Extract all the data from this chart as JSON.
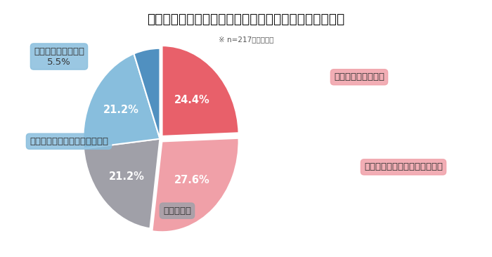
{
  "title": "【図】テレワークによる広告出稿業務の生産性への影響",
  "subtitle": "※ n=217／単一回答",
  "slices": [
    {
      "label": "著しく向上している",
      "pct": 24.4,
      "color": "#E8606A"
    },
    {
      "label": "どちらかといえば向上している",
      "pct": 27.6,
      "color": "#F0A0A8"
    },
    {
      "label": "変わらない",
      "pct": 21.2,
      "color": "#A0A0A8"
    },
    {
      "label": "どちらかといえば低下している",
      "pct": 21.2,
      "color": "#88BEDD"
    },
    {
      "label": "著しく低下している",
      "pct": 5.5,
      "color": "#5090C0"
    }
  ],
  "startangle": 90,
  "background_color": "#FFFFFF"
}
